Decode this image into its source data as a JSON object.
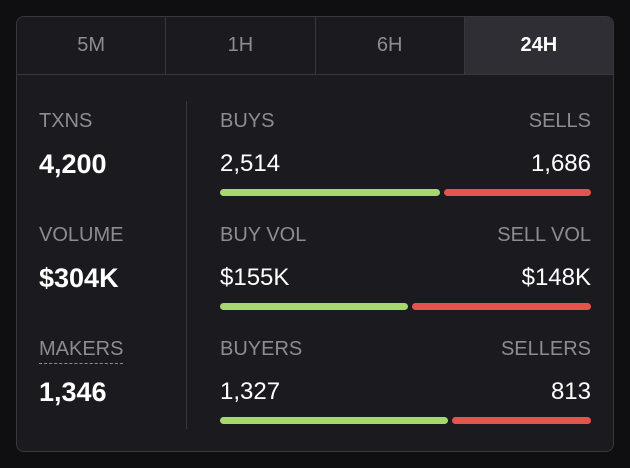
{
  "tabs": [
    "5M",
    "1H",
    "6H",
    "24H"
  ],
  "active_tab": 3,
  "summary": [
    {
      "label": "TXNS",
      "value": {
        "value": 4200,
        "label": "4,200"
      }
    },
    {
      "label": "VOLUME",
      "value": {
        "value": 304000,
        "label": "$304K"
      }
    },
    {
      "label": "MAKERS",
      "value": {
        "value": 1346,
        "label": "1,346"
      },
      "dashed_underline": true
    }
  ],
  "rows": [
    {
      "left_label": "BUYS",
      "right_label": "SELLS",
      "left": {
        "value": 2514,
        "label": "2,514"
      },
      "right": {
        "value": 1686,
        "label": "1,686"
      }
    },
    {
      "left_label": "BUY VOL",
      "right_label": "SELL VOL",
      "left": {
        "value": 155000,
        "label": "$155K"
      },
      "right": {
        "value": 148000,
        "label": "$148K"
      }
    },
    {
      "left_label": "BUYERS",
      "right_label": "SELLERS",
      "left": {
        "value": 1327,
        "label": "1,327"
      },
      "right": {
        "value": 813,
        "label": "813"
      }
    }
  ],
  "colors": {
    "buy": "#a6d86e",
    "sell": "#e5534f"
  }
}
